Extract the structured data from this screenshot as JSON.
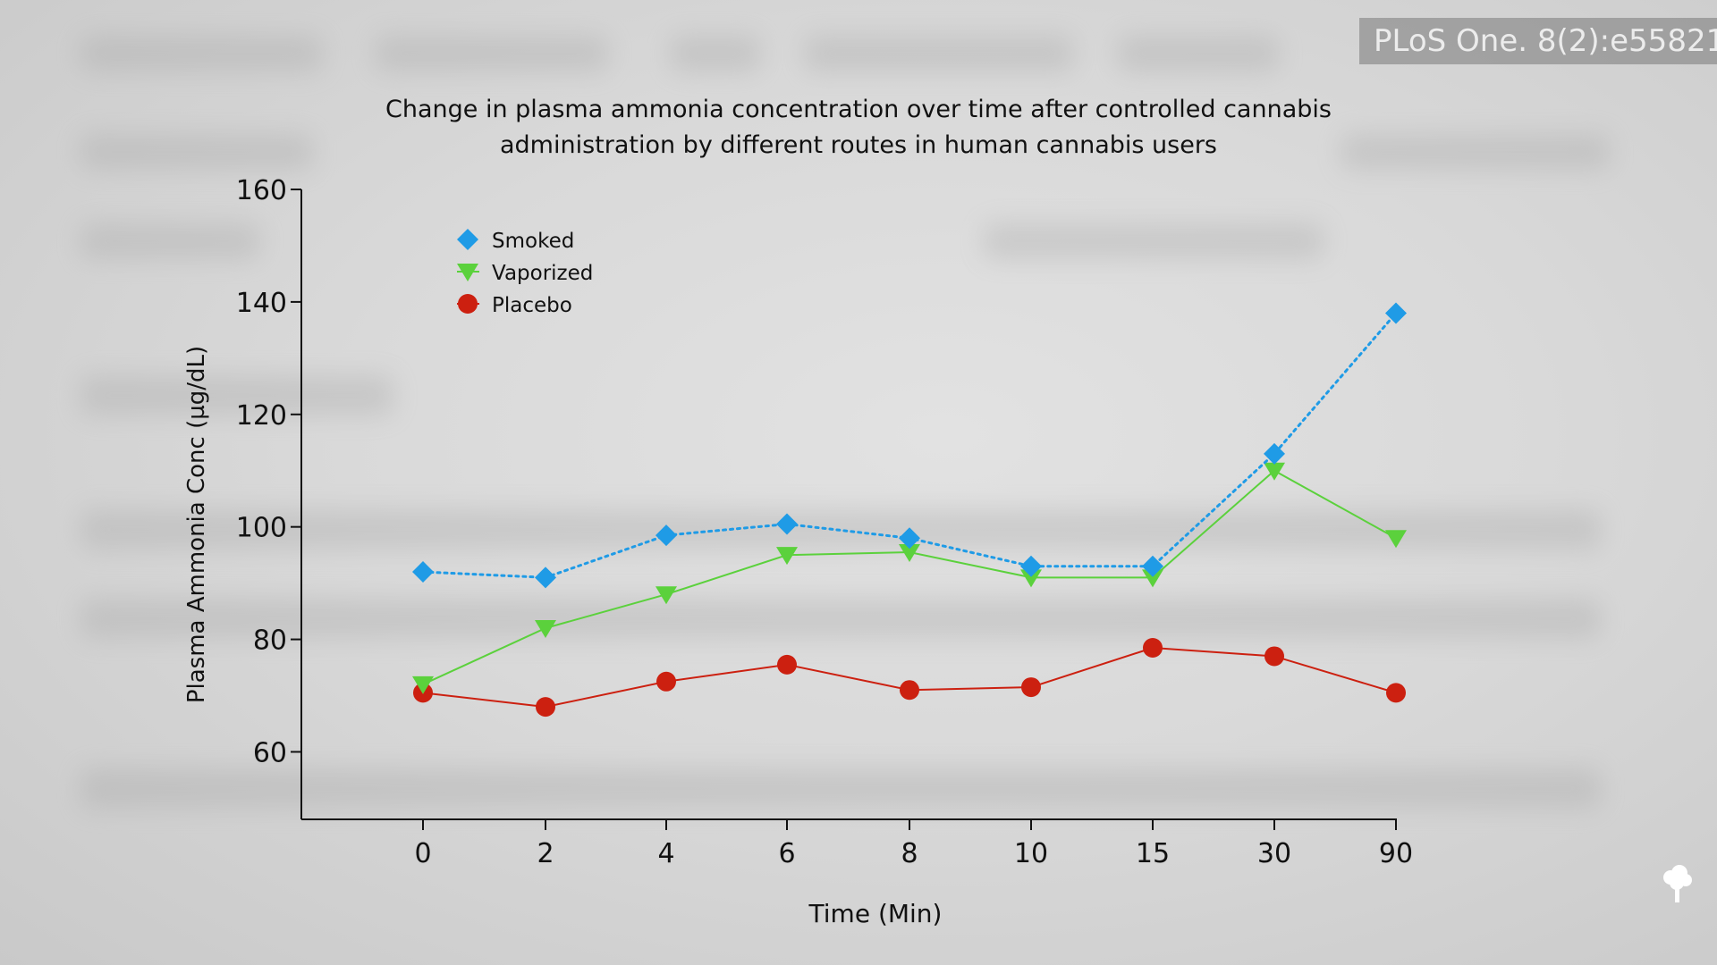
{
  "watermark": {
    "citation": "PLoS One. 8(2):e55821"
  },
  "colors": {
    "smoked": "#1f9be6",
    "vaporized": "#5bd13c",
    "placebo": "#cc2010",
    "axis": "#111111"
  },
  "chart_data": {
    "type": "line",
    "title": "Change in plasma ammonia concentration over time after controlled cannabis administration by different routes in human cannabis users",
    "title_lines": [
      "Change in plasma ammonia concentration over time after controlled cannabis",
      "administration by different routes in human cannabis users"
    ],
    "xlabel": "Time (Min)",
    "ylabel": "Plasma Ammonia Conc (µg/dL)",
    "categories": [
      "0",
      "2",
      "4",
      "6",
      "8",
      "10",
      "15",
      "30",
      "90"
    ],
    "ylim": [
      48,
      160
    ],
    "yticks": [
      60,
      80,
      100,
      120,
      140,
      160
    ],
    "legend_position": "top-left",
    "grid": false,
    "series": [
      {
        "name": "Smoked",
        "marker": "diamond",
        "line": "dotted",
        "color": "#1f9be6",
        "values": [
          92,
          91,
          98.5,
          100.5,
          98,
          93,
          93,
          113,
          138
        ]
      },
      {
        "name": "Vaporized",
        "marker": "triangle-down",
        "line": "solid",
        "color": "#5bd13c",
        "values": [
          72,
          82,
          88,
          95,
          95.5,
          91,
          91,
          110,
          98
        ]
      },
      {
        "name": "Placebo",
        "marker": "circle",
        "line": "solid",
        "color": "#cc2010",
        "values": [
          70.5,
          68,
          72.5,
          75.5,
          71,
          71.5,
          78.5,
          77,
          70.5
        ]
      }
    ]
  }
}
